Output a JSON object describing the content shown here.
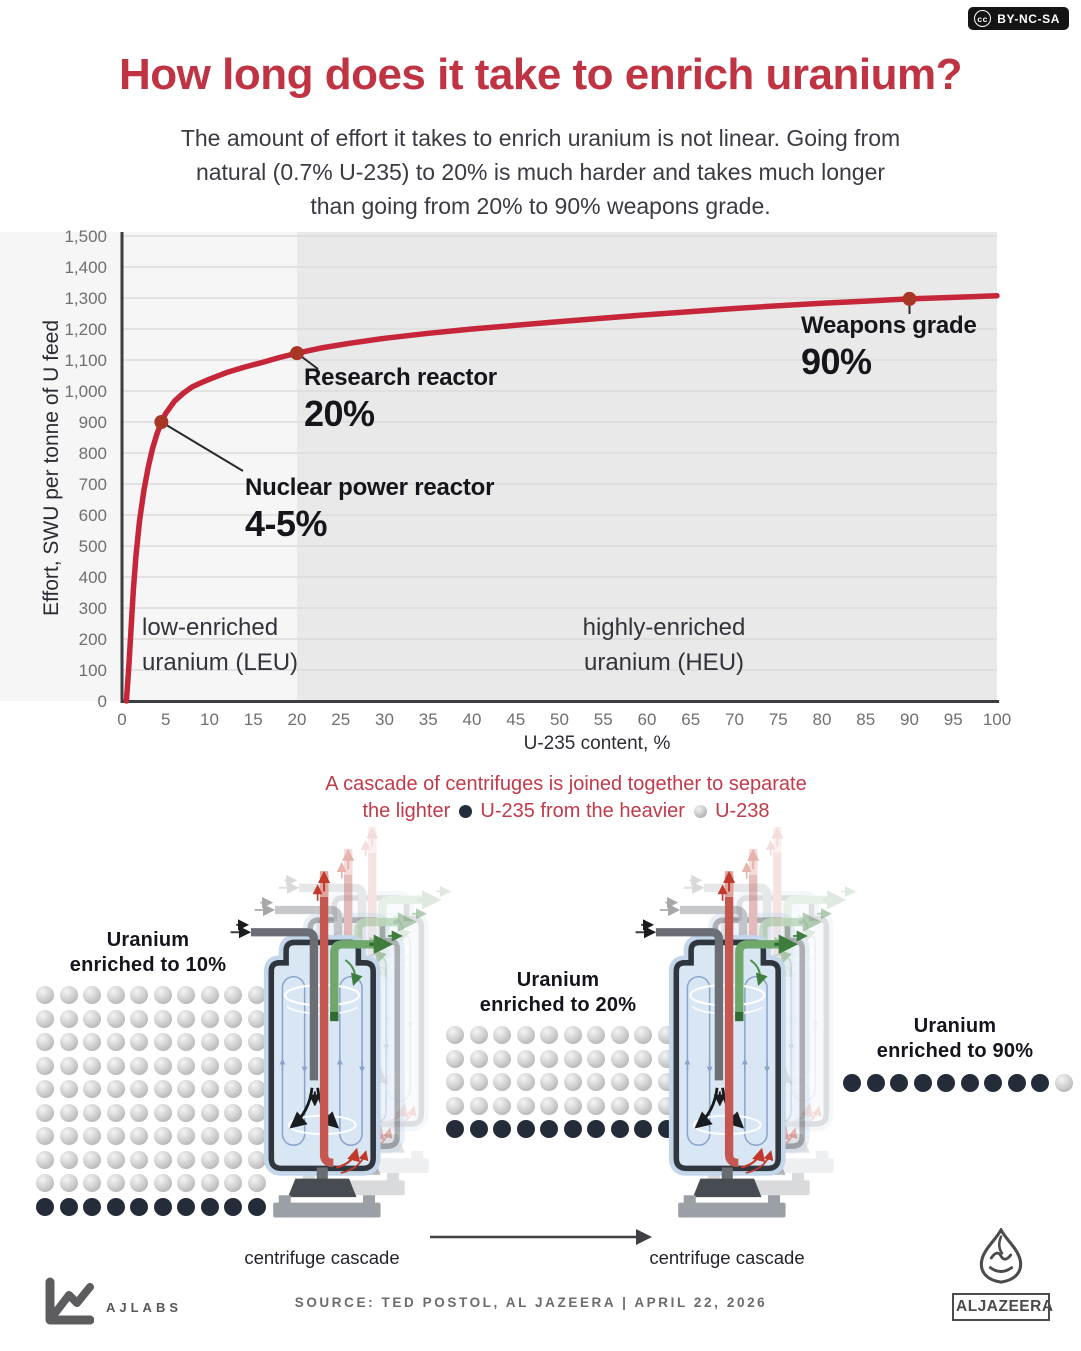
{
  "license_badge": {
    "cc_label": "BY-NC-SA",
    "cc_icon_text": "cc"
  },
  "header": {
    "title": "How long does it take to enrich uranium?",
    "subtitle_line1": "The amount of effort it takes to enrich uranium is not linear. Going from",
    "subtitle_line2": "natural (0.7% U-235) to 20% is much harder and takes much longer",
    "subtitle_line3": "than going from 20% to 90% weapons grade."
  },
  "chart_data": {
    "type": "line",
    "title": "",
    "xlabel": "U-235 content, %",
    "ylabel": "Effort, SWU per tonne of U feed",
    "xlim": [
      0,
      100
    ],
    "ylim": [
      0,
      1500
    ],
    "grid": true,
    "legend": "none",
    "line_color": "#c5263a",
    "point_color": "#a93524",
    "x_ticks": [
      0,
      5,
      10,
      15,
      20,
      25,
      30,
      35,
      40,
      45,
      50,
      55,
      60,
      65,
      70,
      75,
      80,
      85,
      90,
      95,
      100
    ],
    "y_ticks": [
      {
        "value": 0,
        "label": "0"
      },
      {
        "value": 100,
        "label": "100"
      },
      {
        "value": 200,
        "label": "200"
      },
      {
        "value": 300,
        "label": "300"
      },
      {
        "value": 400,
        "label": "400"
      },
      {
        "value": 500,
        "label": "500"
      },
      {
        "value": 600,
        "label": "600"
      },
      {
        "value": 700,
        "label": "700"
      },
      {
        "value": 800,
        "label": "800"
      },
      {
        "value": 900,
        "label": "900"
      },
      {
        "value": 1000,
        "label": "1,000"
      },
      {
        "value": 1100,
        "label": "1,100"
      },
      {
        "value": 1200,
        "label": "1,200"
      },
      {
        "value": 1300,
        "label": "1,300"
      },
      {
        "value": 1400,
        "label": "1,400"
      },
      {
        "value": 1500,
        "label": "1,500"
      }
    ],
    "series": [
      {
        "name": "Effort, SWU per tonne of U feed",
        "x": [
          0.5,
          0.8,
          1,
          1.3,
          1.6,
          2,
          2.5,
          3,
          3.5,
          4,
          4.5,
          5,
          6,
          7,
          8,
          9,
          10,
          12,
          14,
          16,
          18,
          20,
          23,
          26,
          30,
          35,
          40,
          45,
          50,
          55,
          60,
          65,
          70,
          75,
          80,
          85,
          90,
          95,
          100
        ],
        "y": [
          0,
          120,
          220,
          360,
          470,
          580,
          680,
          755,
          815,
          862,
          900,
          928,
          967,
          993,
          1013,
          1026,
          1038,
          1060,
          1077,
          1092,
          1108,
          1122,
          1140,
          1154,
          1170,
          1186,
          1200,
          1212,
          1224,
          1235,
          1246,
          1256,
          1266,
          1275,
          1283,
          1290,
          1297,
          1302,
          1307
        ]
      }
    ],
    "points": [
      {
        "x": 4.5,
        "y": 900,
        "label": "Nuclear power reactor",
        "value": "4-5%"
      },
      {
        "x": 20,
        "y": 1122,
        "label": "Research reactor",
        "value": "20%"
      },
      {
        "x": 90,
        "y": 1297,
        "label": "Weapons grade",
        "value": "90%"
      }
    ],
    "regions": [
      {
        "from": 0,
        "to": 20,
        "color": "#f6f6f6",
        "label_line1": "low-enriched",
        "label_line2": "uranium (LEU)"
      },
      {
        "from": 20,
        "to": 100,
        "color": "#e9e9e9",
        "label_line1": "highly-enriched",
        "label_line2": "uranium (HEU)"
      }
    ]
  },
  "cascade_section": {
    "intro_line1": "A cascade of centrifuges is joined together to separate",
    "intro_line2_part1": "the lighter",
    "intro_line2_part2": "U-235 from the heavier",
    "intro_line2_part3": "U-238",
    "left_label": "centrifuge cascade",
    "right_label": "centrifuge cascade"
  },
  "grids": [
    {
      "title_line1": "Uranium",
      "title_line2": "enriched to 10%",
      "rows": 10,
      "cols": 10,
      "dark": 10,
      "dark_from": "end"
    },
    {
      "title_line1": "Uranium",
      "title_line2": "enriched to 20%",
      "rows": 5,
      "cols": 10,
      "dark": 10,
      "dark_from": "end"
    },
    {
      "title_line1": "Uranium",
      "title_line2": "enriched to 90%",
      "rows": 1,
      "cols": 10,
      "dark": 9,
      "dark_from": "start"
    }
  ],
  "colors": {
    "accent_red": "#c03343",
    "dark_dot": "#242c39",
    "axis": "#3d3d44",
    "gridline": "#dcdcdc"
  },
  "footer": {
    "ajlabs_label": "AJLABS",
    "source_text": "SOURCE:  TED POSTOL, AL JAZEERA   |   APRIL 22, 2026",
    "aljazeera_label": "ALJAZEERA"
  }
}
